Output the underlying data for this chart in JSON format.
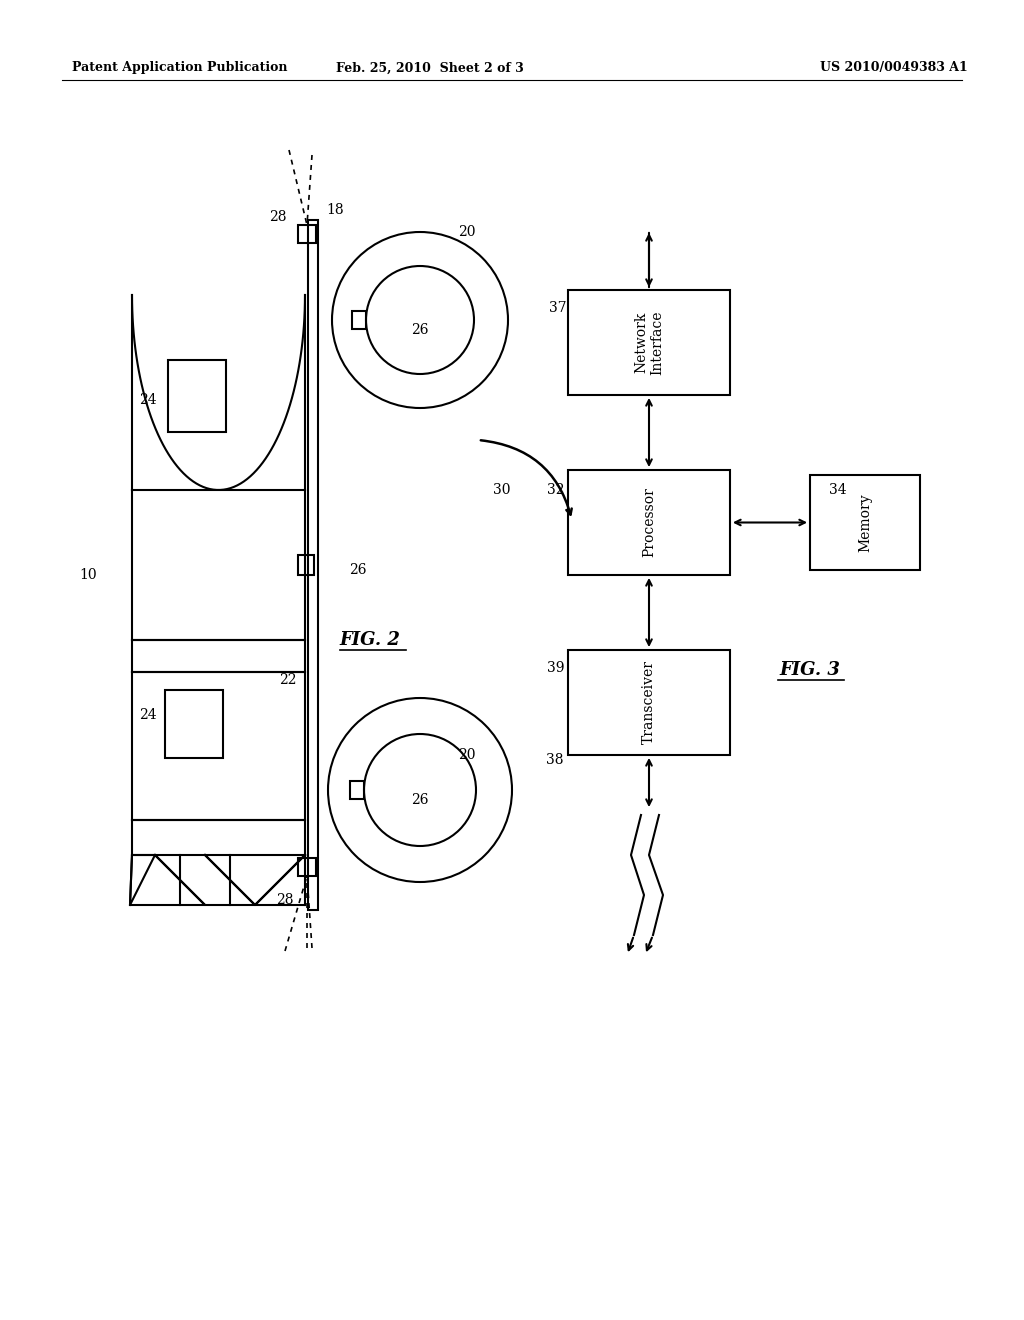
{
  "bg_color": "#ffffff",
  "header_left": "Patent Application Publication",
  "header_mid": "Feb. 25, 2010  Sheet 2 of 3",
  "header_right": "US 2010/0049383 A1",
  "fig2_label": "FIG. 2",
  "fig3_label": "FIG. 3"
}
